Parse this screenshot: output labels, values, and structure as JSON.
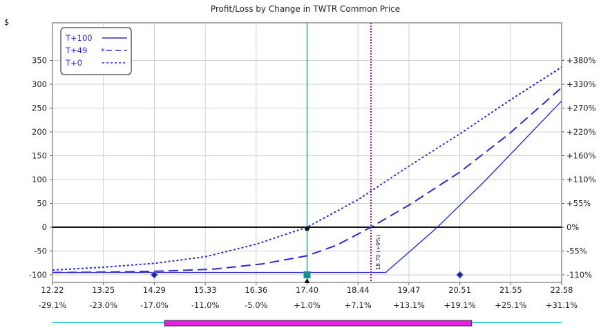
{
  "chart_data": {
    "type": "line",
    "title": "Profit/Loss by Change in TWTR Common Price",
    "ylabel": "$",
    "xlim": [
      12.22,
      22.58
    ],
    "ylim": [
      -105,
      390
    ],
    "x_ticks": [
      "12.22",
      "13.25",
      "14.29",
      "15.33",
      "16.36",
      "17.40",
      "18.44",
      "19.47",
      "20.51",
      "21.55",
      "22.58"
    ],
    "x_pct_ticks": [
      "-29.1%",
      "-23.0%",
      "-17.0%",
      "-11.0%",
      "-5.0%",
      "+1.0%",
      "+7.1%",
      "+13.1%",
      "+19.1%",
      "+25.1%",
      "+31.1%"
    ],
    "y_ticks": [
      {
        "value": 350,
        "label": "350",
        "right": "+380%"
      },
      {
        "value": 300,
        "label": "300",
        "right": "+330%"
      },
      {
        "value": 250,
        "label": "250",
        "right": "+270%"
      },
      {
        "value": 200,
        "label": "200",
        "right": "+220%"
      },
      {
        "value": 150,
        "label": "150",
        "right": "+160%"
      },
      {
        "value": 100,
        "label": "100",
        "right": "+110%"
      },
      {
        "value": 50,
        "label": "50",
        "right": "+55%"
      },
      {
        "value": 0,
        "label": "0",
        "right": "0%"
      },
      {
        "value": -50,
        "label": "-50",
        "right": "-55%"
      },
      {
        "value": -100,
        "label": "-100",
        "right": "-110%"
      }
    ],
    "grid": true,
    "legend": "top-left",
    "series": [
      {
        "name": "T+100",
        "style": "solid",
        "color": "#2b2bd6",
        "x": [
          12.22,
          18.7,
          19.0,
          20.0,
          21.0,
          22.58
        ],
        "y": [
          -95,
          -95,
          -95,
          -5,
          95,
          265
        ]
      },
      {
        "name": "T+49",
        "legend_mark": "*",
        "style": "longdash",
        "color": "#2b2bd6",
        "x": [
          12.22,
          13.5,
          14.5,
          15.5,
          16.5,
          17.4,
          18.0,
          18.7,
          19.5,
          20.5,
          21.5,
          22.58
        ],
        "y": [
          -95,
          -94,
          -92,
          -88,
          -77,
          -60,
          -38,
          0,
          48,
          115,
          195,
          293
        ]
      },
      {
        "name": "T+0",
        "style": "dotted",
        "color": "#2b2bd6",
        "x": [
          12.22,
          13.25,
          14.29,
          15.33,
          16.36,
          17.4,
          18.44,
          19.47,
          20.51,
          21.55,
          22.58
        ],
        "y": [
          -90,
          -84,
          -76,
          -62,
          -36,
          0,
          58,
          128,
          196,
          268,
          336
        ]
      }
    ],
    "zero_line": 0,
    "current_price_line": {
      "x": 17.4,
      "color": "#1a8a8a"
    },
    "breakeven_line": {
      "x": 18.7,
      "label": "18.70 (+9%)",
      "color": "#8b1a8b"
    },
    "markers": [
      {
        "x": 14.29,
        "y": -100,
        "shape": "diamond",
        "color": "#1a2a7a"
      },
      {
        "x": 20.51,
        "y": -100,
        "shape": "diamond",
        "color": "#1a2a7a"
      },
      {
        "x": 17.4,
        "y": -100,
        "shape": "square",
        "color": "#1a8a8a"
      },
      {
        "x": 17.4,
        "y": -100,
        "shape": "triangle",
        "color": "#111111"
      },
      {
        "x": 17.4,
        "y": 0,
        "shape": "dot",
        "color": "#111111"
      }
    ],
    "range_bar": {
      "x_start": 12.22,
      "x_end": 22.58,
      "color": "#3ad4d4",
      "highlight_start": 14.5,
      "highlight_end": 20.75,
      "highlight_color": "#e81ee8"
    }
  }
}
